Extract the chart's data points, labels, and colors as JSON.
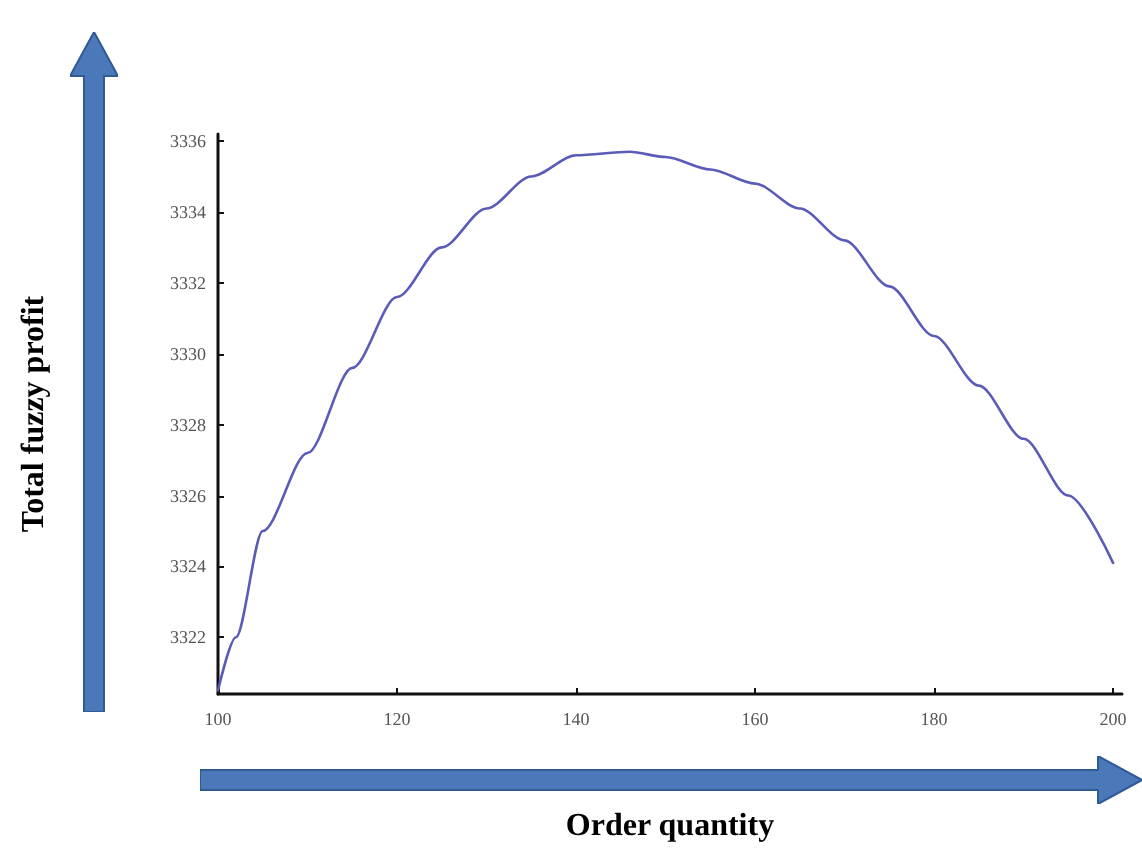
{
  "chart_data": {
    "type": "line",
    "xlabel": "Order quantity",
    "ylabel": "Total fuzzy profit",
    "x": [
      100,
      102,
      105,
      110,
      115,
      120,
      125,
      130,
      135,
      140,
      146,
      150,
      155,
      160,
      165,
      170,
      175,
      180,
      185,
      190,
      195,
      200
    ],
    "series": [
      {
        "color": "#5b5bb8",
        "values": [
          3320.5,
          3322.0,
          3325.0,
          3327.2,
          3329.6,
          3331.6,
          3333.0,
          3334.1,
          3335.0,
          3335.6,
          3335.7,
          3335.55,
          3335.2,
          3334.8,
          3334.1,
          3333.2,
          3331.9,
          3330.5,
          3329.1,
          3327.6,
          3326.0,
          3324.1
        ]
      }
    ],
    "xlim": [
      100,
      201
    ],
    "xticks": [
      100,
      120,
      140,
      160,
      180,
      200
    ],
    "ylim": [
      3320.4,
      3336.2
    ],
    "yticks": [
      3322,
      3324,
      3326,
      3328,
      3330,
      3332,
      3334,
      3336
    ],
    "marker": "none",
    "line_style": "solid"
  }
}
